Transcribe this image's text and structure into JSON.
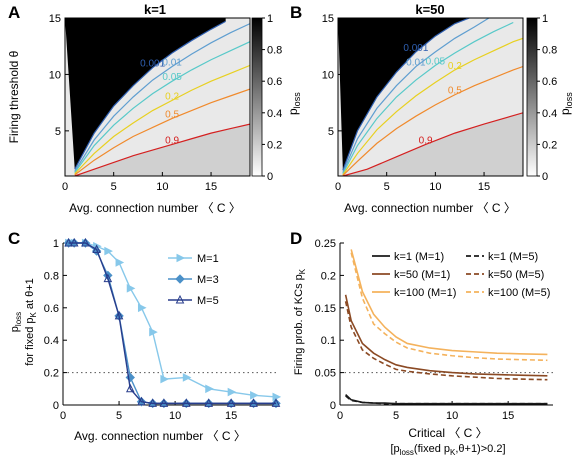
{
  "panels": {
    "A": {
      "letter": "A",
      "title": "k=1",
      "xlabel": "Avg. connection number 〈 C 〉",
      "ylabel": "Firing threshold θ",
      "colorbar_label": "p",
      "colorbar_sub": "loss",
      "colorbar_ticks": [
        "0",
        "0.2",
        "0.4",
        "0.6",
        "0.8",
        "1"
      ],
      "xticks": [
        "0",
        "5",
        "10",
        "15"
      ],
      "yticks": [
        "5",
        "10",
        "15"
      ]
    },
    "B": {
      "letter": "B",
      "title": "k=50",
      "xlabel": "Avg. connection number 〈 C 〉",
      "colorbar_label": "p",
      "colorbar_sub": "loss",
      "colorbar_ticks": [
        "0",
        "0.2",
        "0.4",
        "0.6",
        "0.8",
        "1"
      ],
      "xticks": [
        "0",
        "5",
        "10",
        "15"
      ],
      "yticks": [
        "5",
        "10",
        "15"
      ]
    },
    "C": {
      "letter": "C",
      "xlabel": "Avg. connection number 〈 C 〉",
      "ylabel_line1": "p",
      "ylabel_sub1": "loss",
      "ylabel_line2": "for fixed p",
      "ylabel_sub2": "K",
      "ylabel_line3": " at θ+1",
      "xticks": [
        "0",
        "5",
        "10",
        "15"
      ],
      "yticks": [
        "0",
        "0.2",
        "0.4",
        "0.6",
        "0.8",
        "1"
      ]
    },
    "D": {
      "letter": "D",
      "ylabel_main": "Firing prob. of KCs p",
      "ylabel_sub": "K",
      "xlabel_line1": "Critical 〈 C 〉",
      "xlabel_line2_a": "[p",
      "xlabel_line2_sub1": "loss",
      "xlabel_line2_b": "(fixed p",
      "xlabel_line2_sub2": "K",
      "xlabel_line2_c": ",θ+1)>0.2]",
      "xticks": [
        "0",
        "5",
        "10",
        "15"
      ],
      "yticks": [
        "0",
        "0.05",
        "0.1",
        "0.15",
        "0.2",
        "0.25"
      ]
    }
  },
  "colors": {
    "k1": "#1a1a1a",
    "k50": "#8b4a24",
    "k100": "#f4b25c",
    "m1": "#87c8ea",
    "m3": "#4b90c8",
    "m5": "#283d8c"
  },
  "chart_data": [
    {
      "panel": "A",
      "type": "heatmap",
      "title": "k=1",
      "xlabel": "Avg. connection number 〈 C 〉",
      "ylabel": "Firing threshold θ",
      "xlim": [
        0,
        19
      ],
      "ylim": [
        1,
        15
      ],
      "colorbar_range": [
        0,
        1
      ],
      "contour_levels": [
        {
          "label": "0.001",
          "color": "#2f5fb0",
          "points": [
            [
              1.0,
              1.6
            ],
            [
              3.0,
              4.8
            ],
            [
              5.0,
              7.2
            ],
            [
              7.0,
              9.0
            ],
            [
              9.0,
              10.6
            ],
            [
              11.0,
              11.9
            ],
            [
              13.0,
              13.0
            ],
            [
              15.0,
              14.0
            ],
            [
              16.5,
              14.7
            ]
          ]
        },
        {
          "label": "0.01",
          "color": "#5f9ed0",
          "points": [
            [
              1.0,
              1.4
            ],
            [
              3.0,
              4.2
            ],
            [
              5.0,
              6.3
            ],
            [
              7.0,
              8.0
            ],
            [
              9.0,
              9.5
            ],
            [
              11.0,
              10.7
            ],
            [
              13.0,
              11.8
            ],
            [
              15.0,
              12.8
            ],
            [
              17.0,
              13.7
            ],
            [
              19.0,
              14.5
            ]
          ]
        },
        {
          "label": "0.05",
          "color": "#58c9c9",
          "points": [
            [
              1.0,
              1.3
            ],
            [
              3.0,
              3.7
            ],
            [
              5.0,
              5.5
            ],
            [
              7.0,
              7.0
            ],
            [
              9.0,
              8.3
            ],
            [
              11.0,
              9.4
            ],
            [
              13.0,
              10.4
            ],
            [
              15.0,
              11.3
            ],
            [
              17.0,
              12.1
            ],
            [
              19.0,
              12.9
            ]
          ]
        },
        {
          "label": "0.2",
          "color": "#e8d020",
          "points": [
            [
              1.0,
              1.2
            ],
            [
              3.0,
              3.0
            ],
            [
              5.0,
              4.5
            ],
            [
              7.0,
              5.7
            ],
            [
              9.0,
              6.8
            ],
            [
              11.0,
              7.7
            ],
            [
              13.0,
              8.6
            ],
            [
              15.0,
              9.4
            ],
            [
              17.0,
              10.1
            ],
            [
              19.0,
              10.8
            ]
          ]
        },
        {
          "label": "0.5",
          "color": "#f08a2c",
          "points": [
            [
              1.0,
              1.1
            ],
            [
              3.0,
              2.4
            ],
            [
              5.0,
              3.5
            ],
            [
              7.0,
              4.5
            ],
            [
              9.0,
              5.3
            ],
            [
              11.0,
              6.1
            ],
            [
              13.0,
              6.8
            ],
            [
              15.0,
              7.5
            ],
            [
              17.0,
              8.1
            ],
            [
              19.0,
              8.7
            ]
          ]
        },
        {
          "label": "0.9",
          "color": "#d42020",
          "points": [
            [
              1.0,
              1.0
            ],
            [
              3.0,
              1.6
            ],
            [
              5.0,
              2.2
            ],
            [
              7.0,
              2.8
            ],
            [
              9.0,
              3.3
            ],
            [
              11.0,
              3.8
            ],
            [
              13.0,
              4.3
            ],
            [
              15.0,
              4.8
            ],
            [
              17.0,
              5.2
            ],
            [
              19.0,
              5.6
            ]
          ]
        }
      ]
    },
    {
      "panel": "B",
      "type": "heatmap",
      "title": "k=50",
      "xlabel": "Avg. connection number 〈 C 〉",
      "xlim": [
        0,
        19
      ],
      "ylim": [
        1,
        15
      ],
      "colorbar_range": [
        0,
        1
      ],
      "contour_levels": [
        {
          "label": "0.001",
          "color": "#2f5fb0",
          "points": [
            [
              0.5,
              1.5
            ],
            [
              2.0,
              5.0
            ],
            [
              4.0,
              8.0
            ],
            [
              6.0,
              10.2
            ],
            [
              8.0,
              12.0
            ],
            [
              10.0,
              13.4
            ],
            [
              12.0,
              14.5
            ],
            [
              13.5,
              15.0
            ]
          ]
        },
        {
          "label": "0.01",
          "color": "#5f9ed0",
          "points": [
            [
              0.5,
              1.3
            ],
            [
              2.0,
              4.3
            ],
            [
              4.0,
              7.0
            ],
            [
              6.0,
              9.0
            ],
            [
              8.0,
              10.7
            ],
            [
              10.0,
              12.0
            ],
            [
              12.0,
              13.2
            ],
            [
              14.0,
              14.2
            ],
            [
              15.5,
              15.0
            ]
          ]
        },
        {
          "label": "0.05",
          "color": "#58c9c9",
          "points": [
            [
              0.5,
              1.2
            ],
            [
              2.0,
              3.7
            ],
            [
              4.0,
              6.1
            ],
            [
              6.0,
              8.0
            ],
            [
              8.0,
              9.5
            ],
            [
              10.0,
              10.8
            ],
            [
              12.0,
              11.9
            ],
            [
              14.0,
              12.9
            ],
            [
              16.0,
              13.8
            ],
            [
              18.0,
              14.6
            ]
          ]
        },
        {
          "label": "0.2",
          "color": "#e8d020",
          "points": [
            [
              0.5,
              1.1
            ],
            [
              2.0,
              3.0
            ],
            [
              4.0,
              5.1
            ],
            [
              6.0,
              6.7
            ],
            [
              8.0,
              8.1
            ],
            [
              10.0,
              9.3
            ],
            [
              12.0,
              10.4
            ],
            [
              14.0,
              11.3
            ],
            [
              16.0,
              12.1
            ],
            [
              18.0,
              12.9
            ],
            [
              19.0,
              13.2
            ]
          ]
        },
        {
          "label": "0.5",
          "color": "#f08a2c",
          "points": [
            [
              0.5,
              1.05
            ],
            [
              2.0,
              2.3
            ],
            [
              4.0,
              3.9
            ],
            [
              6.0,
              5.2
            ],
            [
              8.0,
              6.3
            ],
            [
              10.0,
              7.3
            ],
            [
              12.0,
              8.2
            ],
            [
              14.0,
              9.0
            ],
            [
              16.0,
              9.7
            ],
            [
              18.0,
              10.4
            ],
            [
              19.0,
              10.7
            ]
          ]
        },
        {
          "label": "0.9",
          "color": "#d42020",
          "points": [
            [
              0.5,
              1.0
            ],
            [
              3.0,
              1.6
            ],
            [
              6.0,
              2.7
            ],
            [
              9.0,
              3.8
            ],
            [
              12.0,
              4.8
            ],
            [
              15.0,
              5.6
            ],
            [
              19.0,
              6.6
            ]
          ]
        }
      ]
    },
    {
      "panel": "C",
      "type": "line",
      "xlabel": "Avg. connection number 〈 C 〉",
      "xlim": [
        0,
        19
      ],
      "ylim": [
        0,
        1
      ],
      "grid": false,
      "reference_line": 0.2,
      "legend_position": "top-right",
      "series": [
        {
          "name": "M=1",
          "marker": "triangle-right",
          "x": [
            0.5,
            1,
            2,
            3,
            4,
            5,
            6,
            7,
            8,
            9,
            11,
            13,
            15,
            17,
            19
          ],
          "y": [
            1,
            1,
            1,
            0.98,
            0.95,
            0.88,
            0.72,
            0.6,
            0.45,
            0.16,
            0.17,
            0.1,
            0.08,
            0.06,
            0.05
          ]
        },
        {
          "name": "M=3",
          "marker": "diamond",
          "x": [
            0.5,
            1,
            2,
            3,
            4,
            5,
            6,
            7,
            8,
            9,
            11,
            13,
            15,
            17,
            19
          ],
          "y": [
            1,
            1,
            1,
            0.95,
            0.8,
            0.55,
            0.17,
            0.02,
            0.01,
            0.01,
            0.01,
            0.01,
            0.01,
            0.01,
            0.01
          ]
        },
        {
          "name": "M=5",
          "marker": "triangle-up",
          "x": [
            0.5,
            1,
            2,
            3,
            4,
            5,
            6,
            7,
            8,
            9,
            11,
            13,
            15,
            17,
            19
          ],
          "y": [
            1,
            1,
            1,
            0.96,
            0.78,
            0.55,
            0.1,
            0.02,
            0.01,
            0.01,
            0.01,
            0.01,
            0.01,
            0.01,
            0.01
          ]
        }
      ]
    },
    {
      "panel": "D",
      "type": "line",
      "xlabel": "Critical 〈 C 〉 [ploss(fixed pK,θ+1)>0.2]",
      "ylabel": "Firing prob. of KCs pK",
      "xlim": [
        0,
        19
      ],
      "ylim": [
        0,
        0.25
      ],
      "reference_line": 0.05,
      "legend_position": "top",
      "series": [
        {
          "name": "k=1 (M=1)",
          "style": "solid",
          "x": [
            0.5,
            1,
            2,
            3,
            4,
            5,
            6,
            8,
            10,
            12,
            14,
            16,
            18.5
          ],
          "y": [
            0.016,
            0.008,
            0.004,
            0.003,
            0.003,
            0.002,
            0.002,
            0.002,
            0.002,
            0.002,
            0.002,
            0.002,
            0.002
          ]
        },
        {
          "name": "k=1 (M=5)",
          "style": "dashed",
          "x": [
            0.5,
            1,
            2,
            3,
            4,
            5,
            6,
            8,
            10,
            12,
            14,
            16,
            18.5
          ],
          "y": [
            0.014,
            0.007,
            0.004,
            0.003,
            0.002,
            0.002,
            0.002,
            0.002,
            0.002,
            0.002,
            0.002,
            0.002,
            0.002
          ]
        },
        {
          "name": "k=50 (M=1)",
          "style": "solid",
          "x": [
            0.5,
            1,
            2,
            3,
            4,
            5,
            6,
            8,
            10,
            12,
            14,
            16,
            18.5
          ],
          "y": [
            0.17,
            0.13,
            0.095,
            0.08,
            0.07,
            0.062,
            0.058,
            0.053,
            0.05,
            0.048,
            0.047,
            0.046,
            0.045
          ]
        },
        {
          "name": "k=50 (M=5)",
          "style": "dashed",
          "x": [
            0.5,
            1,
            2,
            3,
            4,
            5,
            6,
            8,
            10,
            12,
            14,
            16,
            18.5
          ],
          "y": [
            0.16,
            0.12,
            0.085,
            0.072,
            0.063,
            0.055,
            0.052,
            0.048,
            0.045,
            0.043,
            0.041,
            0.04,
            0.039
          ]
        },
        {
          "name": "k=100 (M=1)",
          "style": "solid",
          "x": [
            1,
            2,
            3,
            4,
            5,
            6,
            8,
            10,
            12,
            14,
            16,
            18.5
          ],
          "y": [
            0.24,
            0.175,
            0.14,
            0.12,
            0.105,
            0.095,
            0.088,
            0.084,
            0.082,
            0.08,
            0.079,
            0.078
          ]
        },
        {
          "name": "k=100 (M=5)",
          "style": "dashed",
          "x": [
            1,
            2,
            3,
            4,
            5,
            6,
            8,
            10,
            12,
            14,
            16,
            18.5
          ],
          "y": [
            0.235,
            0.165,
            0.125,
            0.11,
            0.097,
            0.088,
            0.08,
            0.076,
            0.073,
            0.071,
            0.07,
            0.069
          ]
        }
      ]
    }
  ]
}
